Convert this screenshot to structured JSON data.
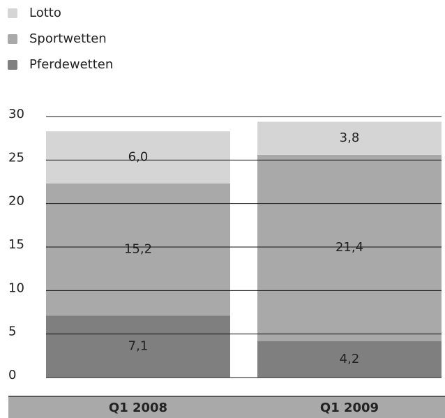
{
  "chart_data": {
    "type": "stacked-bar",
    "categories": [
      "Q1 2008",
      "Q1 2009"
    ],
    "series": [
      {
        "name": "Pferdewetten",
        "color": "#7f7f7f",
        "values": [
          7.1,
          4.2
        ],
        "value_labels": [
          "7,1",
          "4,2"
        ]
      },
      {
        "name": "Sportwetten",
        "color": "#a9a9a9",
        "values": [
          15.2,
          21.4
        ],
        "value_labels": [
          "15,2",
          "21,4"
        ]
      },
      {
        "name": "Lotto",
        "color": "#d5d5d5",
        "values": [
          6.0,
          3.8
        ],
        "value_labels": [
          "6,0",
          "3,8"
        ]
      }
    ],
    "ylim": [
      0,
      30
    ],
    "yticks": [
      0,
      5,
      10,
      15,
      20,
      25,
      30
    ],
    "grid": true
  }
}
